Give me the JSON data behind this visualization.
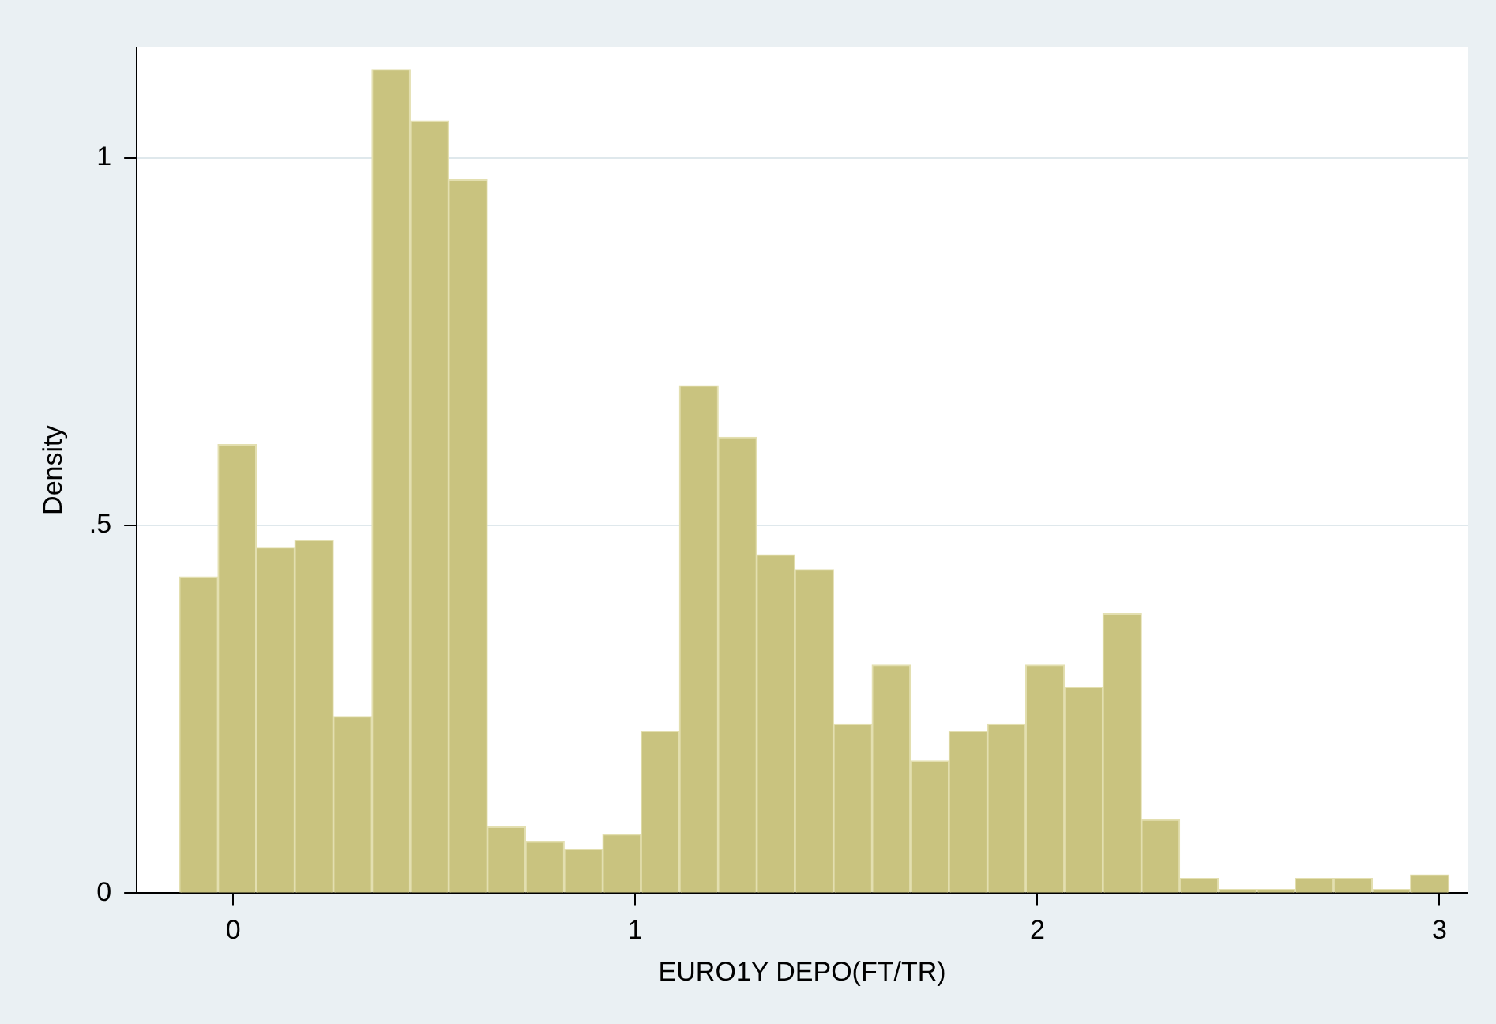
{
  "chart_data": {
    "type": "histogram",
    "xlabel": "EURO1Y DEPO(FT/TR)",
    "ylabel": "Density",
    "bins": [
      -0.134,
      -0.038,
      0.057,
      0.153,
      0.249,
      0.345,
      0.44,
      0.536,
      0.632,
      0.727,
      0.823,
      0.919,
      1.014,
      1.11,
      1.206,
      1.302,
      1.397,
      1.493,
      1.589,
      1.684,
      1.78,
      1.876,
      1.971,
      2.067,
      2.163,
      2.259,
      2.354,
      2.45,
      2.546,
      2.641,
      2.737,
      2.833,
      2.928,
      3.024
    ],
    "values": [
      0.43,
      0.61,
      0.47,
      0.48,
      0.24,
      1.12,
      1.05,
      0.97,
      0.09,
      0.07,
      0.06,
      0.08,
      0.22,
      0.69,
      0.62,
      0.46,
      0.44,
      0.23,
      0.31,
      0.18,
      0.22,
      0.23,
      0.31,
      0.28,
      0.38,
      0.1,
      0.02,
      0.005,
      0.005,
      0.02,
      0.02,
      0.005,
      0.025
    ],
    "color": "#c9c37f",
    "xlim": [
      -0.24,
      3.07
    ],
    "xticks": [
      0,
      1,
      2,
      3
    ],
    "ylim": [
      0,
      1.15
    ],
    "yticks": [
      0,
      {
        "value": 0.5,
        "label": ".5"
      },
      1
    ],
    "grid": "y",
    "legend": false
  }
}
